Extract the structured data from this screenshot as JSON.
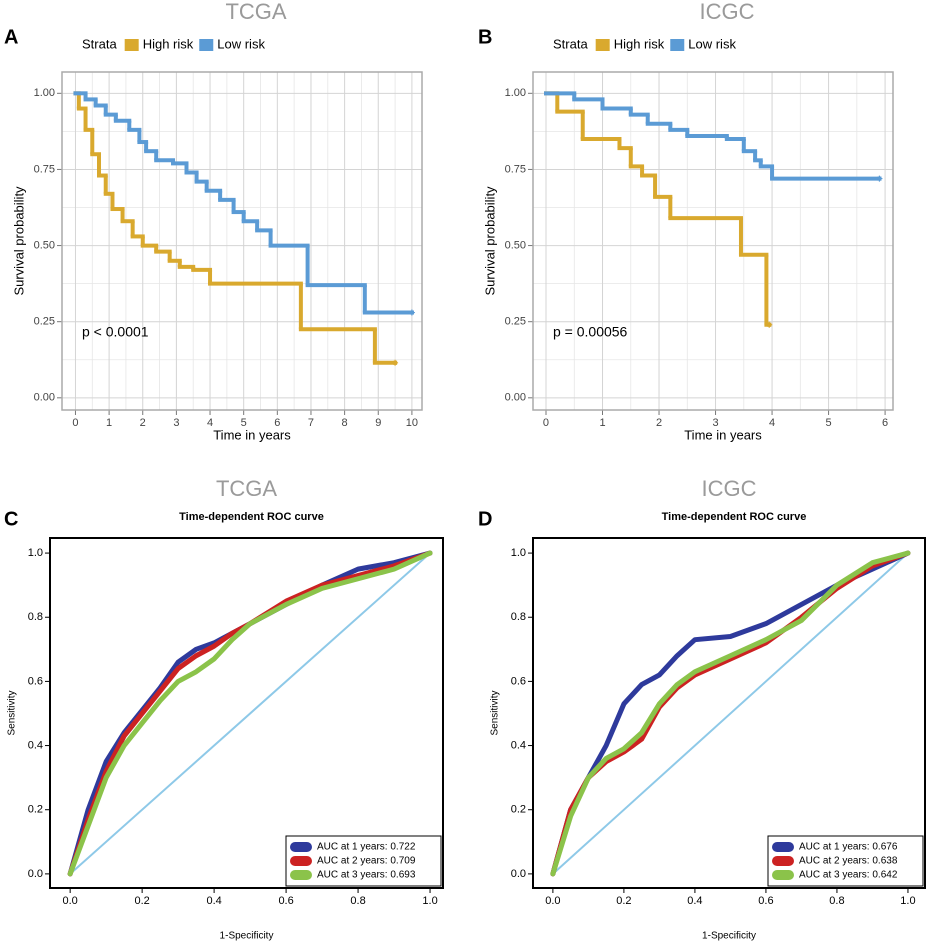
{
  "chart_data": [
    {
      "type": "km",
      "panel_label": "A",
      "title": "TCGA",
      "legend_title": "Strata",
      "legend": "top",
      "grid": true,
      "xlabel": "Time in years",
      "ylabel": "Survival probability",
      "annotation": "p < 0.0001",
      "xlim": [
        -0.4,
        10.3
      ],
      "ylim": [
        -0.04,
        1.07
      ],
      "xticks": [
        0,
        1,
        2,
        3,
        4,
        5,
        6,
        7,
        8,
        9,
        10
      ],
      "yticks": [
        {
          "value": 0,
          "label": "0.00"
        },
        {
          "value": 0.25,
          "label": "0.25"
        },
        {
          "value": 0.5,
          "label": "0.50"
        },
        {
          "value": 0.75,
          "label": "0.75"
        },
        {
          "value": 1,
          "label": "1.00"
        }
      ],
      "series": [
        {
          "name": "High risk",
          "color": "#D9A92E",
          "x": [
            0,
            0.1,
            0.3,
            0.5,
            0.7,
            0.9,
            1.1,
            1.4,
            1.7,
            2.0,
            2.4,
            2.8,
            3.1,
            3.5,
            4.0,
            6.7,
            8.9,
            9.5
          ],
          "values": [
            1.0,
            0.95,
            0.88,
            0.8,
            0.73,
            0.67,
            0.62,
            0.58,
            0.53,
            0.5,
            0.48,
            0.45,
            0.43,
            0.42,
            0.375,
            0.225,
            0.115,
            0.115
          ]
        },
        {
          "name": "Low risk",
          "color": "#5B9BD5",
          "x": [
            0,
            0.3,
            0.6,
            0.9,
            1.2,
            1.6,
            1.9,
            2.1,
            2.4,
            2.9,
            3.3,
            3.6,
            3.9,
            4.3,
            4.7,
            5.0,
            5.4,
            5.8,
            6.9,
            8.6,
            10.0
          ],
          "values": [
            1.0,
            0.98,
            0.96,
            0.93,
            0.91,
            0.88,
            0.84,
            0.81,
            0.78,
            0.77,
            0.74,
            0.71,
            0.68,
            0.65,
            0.61,
            0.58,
            0.55,
            0.5,
            0.37,
            0.28,
            0.28
          ]
        }
      ]
    },
    {
      "type": "km",
      "panel_label": "B",
      "title": "ICGC",
      "legend_title": "Strata",
      "legend": "top",
      "grid": true,
      "xlabel": "Time in years",
      "ylabel": "Survival probability",
      "annotation": "p = 0.00056",
      "xlim": [
        -0.23,
        6.14
      ],
      "ylim": [
        -0.04,
        1.07
      ],
      "xticks": [
        0,
        1,
        2,
        3,
        4,
        5,
        6
      ],
      "yticks": [
        {
          "value": 0,
          "label": "0.00"
        },
        {
          "value": 0.25,
          "label": "0.25"
        },
        {
          "value": 0.5,
          "label": "0.50"
        },
        {
          "value": 0.75,
          "label": "0.75"
        },
        {
          "value": 1,
          "label": "1.00"
        }
      ],
      "series": [
        {
          "name": "High risk",
          "color": "#D9A92E",
          "x": [
            0,
            0.2,
            0.65,
            1.3,
            1.5,
            1.7,
            1.93,
            2.2,
            3.45,
            3.9,
            3.95
          ],
          "values": [
            1.0,
            0.94,
            0.85,
            0.82,
            0.76,
            0.73,
            0.66,
            0.59,
            0.47,
            0.24,
            0.24
          ]
        },
        {
          "name": "Low risk",
          "color": "#5B9BD5",
          "x": [
            0,
            0.5,
            1.0,
            1.5,
            1.8,
            2.2,
            2.5,
            3.2,
            3.5,
            3.7,
            3.8,
            4.0,
            5.9
          ],
          "values": [
            1.0,
            0.98,
            0.95,
            0.93,
            0.9,
            0.88,
            0.86,
            0.85,
            0.81,
            0.78,
            0.76,
            0.72,
            0.72
          ]
        }
      ]
    },
    {
      "type": "roc",
      "panel_label": "C",
      "title": "TCGA",
      "subtitle": "Time-dependent ROC curve",
      "legend": "bottom-right",
      "grid": false,
      "xlabel": "1-Specificity",
      "ylabel": "Sensitivity",
      "xlim": [
        -0.056,
        1.036
      ],
      "ylim": [
        -0.044,
        1.047
      ],
      "xticks": [
        {
          "value": 0,
          "label": "0.0"
        },
        {
          "value": 0.2,
          "label": "0.2"
        },
        {
          "value": 0.4,
          "label": "0.4"
        },
        {
          "value": 0.6,
          "label": "0.6"
        },
        {
          "value": 0.8,
          "label": "0.8"
        },
        {
          "value": 1,
          "label": "1.0"
        }
      ],
      "yticks": [
        {
          "value": 0,
          "label": "0.0"
        },
        {
          "value": 0.2,
          "label": "0.2"
        },
        {
          "value": 0.4,
          "label": "0.4"
        },
        {
          "value": 0.6,
          "label": "0.6"
        },
        {
          "value": 0.8,
          "label": "0.8"
        },
        {
          "value": 1,
          "label": "1.0"
        }
      ],
      "series": [
        {
          "name": "AUC at 1 years: 0.722",
          "color": "#2E3A9C",
          "x": [
            0,
            0.05,
            0.1,
            0.15,
            0.2,
            0.25,
            0.3,
            0.35,
            0.4,
            0.45,
            0.5,
            0.6,
            0.7,
            0.8,
            0.9,
            1
          ],
          "values": [
            0,
            0.2,
            0.35,
            0.44,
            0.51,
            0.58,
            0.66,
            0.7,
            0.72,
            0.75,
            0.78,
            0.84,
            0.9,
            0.95,
            0.97,
            1
          ]
        },
        {
          "name": "AUC at 2 years: 0.709",
          "color": "#CC2222",
          "x": [
            0,
            0.05,
            0.1,
            0.15,
            0.2,
            0.25,
            0.3,
            0.35,
            0.4,
            0.45,
            0.5,
            0.6,
            0.7,
            0.8,
            0.9,
            1
          ],
          "values": [
            0,
            0.17,
            0.32,
            0.43,
            0.5,
            0.57,
            0.64,
            0.68,
            0.71,
            0.75,
            0.78,
            0.85,
            0.9,
            0.93,
            0.96,
            1
          ]
        },
        {
          "name": "AUC at 3 years: 0.693",
          "color": "#8BC34A",
          "x": [
            0,
            0.05,
            0.1,
            0.15,
            0.2,
            0.25,
            0.3,
            0.35,
            0.4,
            0.45,
            0.5,
            0.6,
            0.7,
            0.8,
            0.9,
            1
          ],
          "values": [
            0,
            0.15,
            0.3,
            0.4,
            0.47,
            0.54,
            0.6,
            0.63,
            0.67,
            0.73,
            0.78,
            0.84,
            0.89,
            0.92,
            0.95,
            1
          ]
        }
      ]
    },
    {
      "type": "roc",
      "panel_label": "D",
      "title": "ICGC",
      "subtitle": "Time-dependent ROC curve",
      "legend": "bottom-right",
      "grid": false,
      "xlabel": "1-Specificity",
      "ylabel": "Sensitivity",
      "xlim": [
        -0.056,
        1.048
      ],
      "ylim": [
        -0.044,
        1.047
      ],
      "xticks": [
        {
          "value": 0,
          "label": "0.0"
        },
        {
          "value": 0.2,
          "label": "0.2"
        },
        {
          "value": 0.4,
          "label": "0.4"
        },
        {
          "value": 0.6,
          "label": "0.6"
        },
        {
          "value": 0.8,
          "label": "0.8"
        },
        {
          "value": 1,
          "label": "1.0"
        }
      ],
      "yticks": [
        {
          "value": 0,
          "label": "0.0"
        },
        {
          "value": 0.2,
          "label": "0.2"
        },
        {
          "value": 0.4,
          "label": "0.4"
        },
        {
          "value": 0.6,
          "label": "0.6"
        },
        {
          "value": 0.8,
          "label": "0.8"
        },
        {
          "value": 1,
          "label": "1.0"
        }
      ],
      "series": [
        {
          "name": "AUC at 1 years: 0.676",
          "color": "#2E3A9C",
          "x": [
            0,
            0.05,
            0.1,
            0.15,
            0.2,
            0.25,
            0.3,
            0.35,
            0.4,
            0.5,
            0.6,
            0.7,
            0.8,
            0.9,
            1
          ],
          "values": [
            0,
            0.2,
            0.3,
            0.4,
            0.53,
            0.59,
            0.62,
            0.68,
            0.73,
            0.74,
            0.78,
            0.84,
            0.9,
            0.95,
            1
          ]
        },
        {
          "name": "AUC at 2 years: 0.638",
          "color": "#CC2222",
          "x": [
            0,
            0.05,
            0.1,
            0.15,
            0.2,
            0.25,
            0.3,
            0.35,
            0.4,
            0.5,
            0.6,
            0.7,
            0.8,
            0.9,
            1
          ],
          "values": [
            0,
            0.2,
            0.3,
            0.35,
            0.38,
            0.42,
            0.52,
            0.58,
            0.62,
            0.67,
            0.72,
            0.8,
            0.89,
            0.96,
            1
          ]
        },
        {
          "name": "AUC at 3 years: 0.642",
          "color": "#8BC34A",
          "x": [
            0,
            0.05,
            0.1,
            0.15,
            0.2,
            0.25,
            0.3,
            0.35,
            0.4,
            0.5,
            0.6,
            0.7,
            0.8,
            0.9,
            1
          ],
          "values": [
            0,
            0.18,
            0.3,
            0.36,
            0.39,
            0.44,
            0.53,
            0.59,
            0.63,
            0.68,
            0.73,
            0.79,
            0.9,
            0.97,
            1
          ]
        }
      ]
    }
  ]
}
